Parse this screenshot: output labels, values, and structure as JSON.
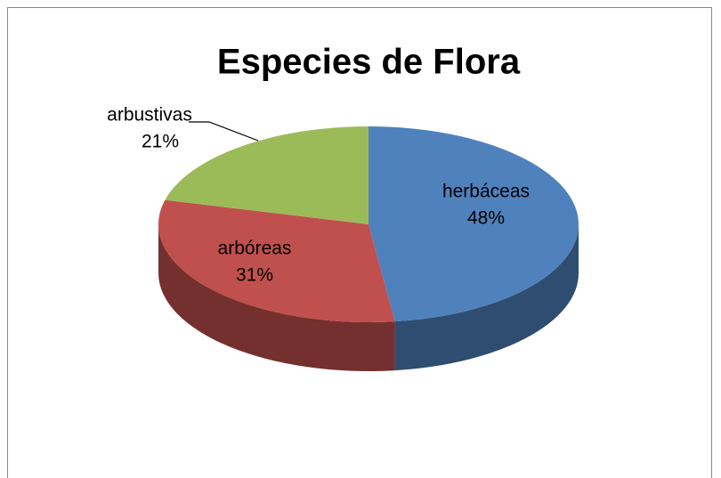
{
  "chart_data": {
    "type": "pie",
    "title": "Especies de Flora",
    "categories": [
      "herbáceas",
      "arbóreas",
      "arbustivas"
    ],
    "values": [
      48,
      31,
      21
    ],
    "value_labels": [
      "48%",
      "31%",
      "21%"
    ],
    "colors": [
      "#4f81bd",
      "#c0504d",
      "#9bbb59"
    ]
  }
}
